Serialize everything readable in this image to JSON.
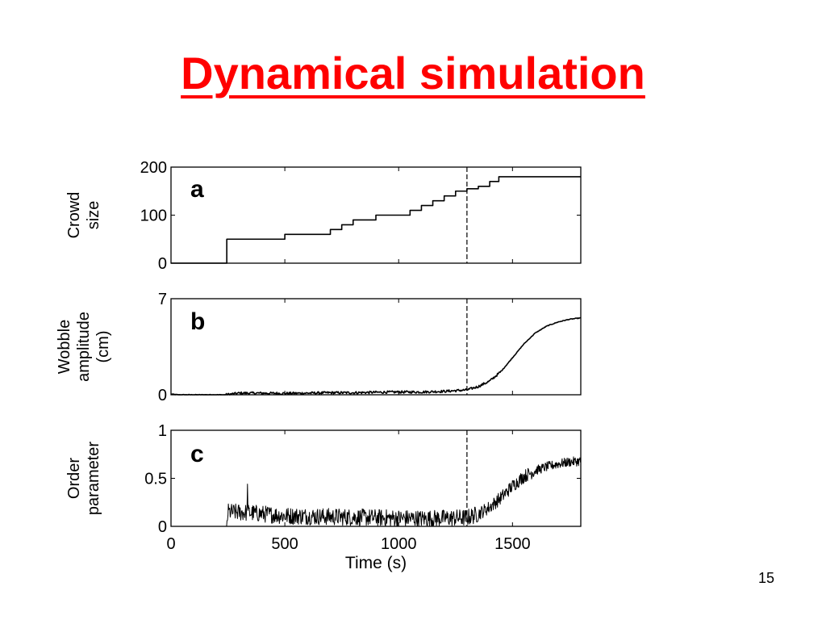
{
  "slide": {
    "title": "Dynamical simulation",
    "page_number": "15",
    "title_color": "#ff0000"
  },
  "chart_data": [
    {
      "type": "line",
      "panel": "a",
      "ylabel": [
        "Crowd",
        "size"
      ],
      "xlim": [
        0,
        1800
      ],
      "ylim": [
        0,
        200
      ],
      "yticks": [
        0,
        100,
        200
      ],
      "xticks": [
        500,
        1000,
        1500
      ],
      "marker_x": 1300,
      "series": [
        {
          "kind": "step",
          "x": [
            0,
            245,
            500,
            650,
            700,
            750,
            800,
            900,
            1000,
            1050,
            1100,
            1150,
            1200,
            1250,
            1300,
            1350,
            1400,
            1440,
            1800
          ],
          "values": [
            0,
            50,
            60,
            60,
            70,
            80,
            90,
            100,
            100,
            110,
            120,
            130,
            140,
            150,
            155,
            160,
            170,
            180,
            180
          ]
        }
      ]
    },
    {
      "type": "line",
      "panel": "b",
      "ylabel": [
        "Wobble",
        "amplitude",
        "(cm)"
      ],
      "xlim": [
        0,
        1800
      ],
      "ylim": [
        0,
        7
      ],
      "yticks": [
        0,
        7
      ],
      "xticks": [
        500,
        1000,
        1500
      ],
      "marker_x": 1300,
      "series": [
        {
          "kind": "line",
          "x": [
            0,
            30,
            240,
            300,
            400,
            500,
            600,
            700,
            800,
            900,
            1000,
            1100,
            1200,
            1250,
            1300,
            1350,
            1400,
            1450,
            1500,
            1550,
            1600,
            1650,
            1700,
            1750,
            1800
          ],
          "values": [
            0.05,
            0.0,
            0.0,
            0.12,
            0.12,
            0.1,
            0.12,
            0.15,
            0.15,
            0.18,
            0.2,
            0.2,
            0.25,
            0.3,
            0.35,
            0.6,
            1.0,
            1.7,
            2.7,
            3.7,
            4.5,
            5.0,
            5.3,
            5.5,
            5.6
          ]
        }
      ]
    },
    {
      "type": "line",
      "panel": "c",
      "ylabel": [
        "Order",
        "parameter"
      ],
      "xlim": [
        0,
        1800
      ],
      "ylim": [
        0,
        1
      ],
      "yticks": [
        0,
        0.5,
        1
      ],
      "yticklabels": [
        "0",
        "0.5",
        "1"
      ],
      "xticks": [
        0,
        500,
        1000,
        1500
      ],
      "xlabel": "Time (s)",
      "marker_x": 1300,
      "series": [
        {
          "kind": "noisy",
          "x": [
            0,
            245,
            250,
            350,
            500,
            700,
            900,
            1100,
            1300,
            1350,
            1400,
            1450,
            1500,
            1550,
            1600,
            1650,
            1700,
            1750,
            1800
          ],
          "values": [
            0.0,
            0.0,
            0.15,
            0.14,
            0.11,
            0.1,
            0.09,
            0.08,
            0.09,
            0.13,
            0.2,
            0.3,
            0.42,
            0.52,
            0.58,
            0.62,
            0.65,
            0.67,
            0.68
          ]
        }
      ]
    }
  ]
}
